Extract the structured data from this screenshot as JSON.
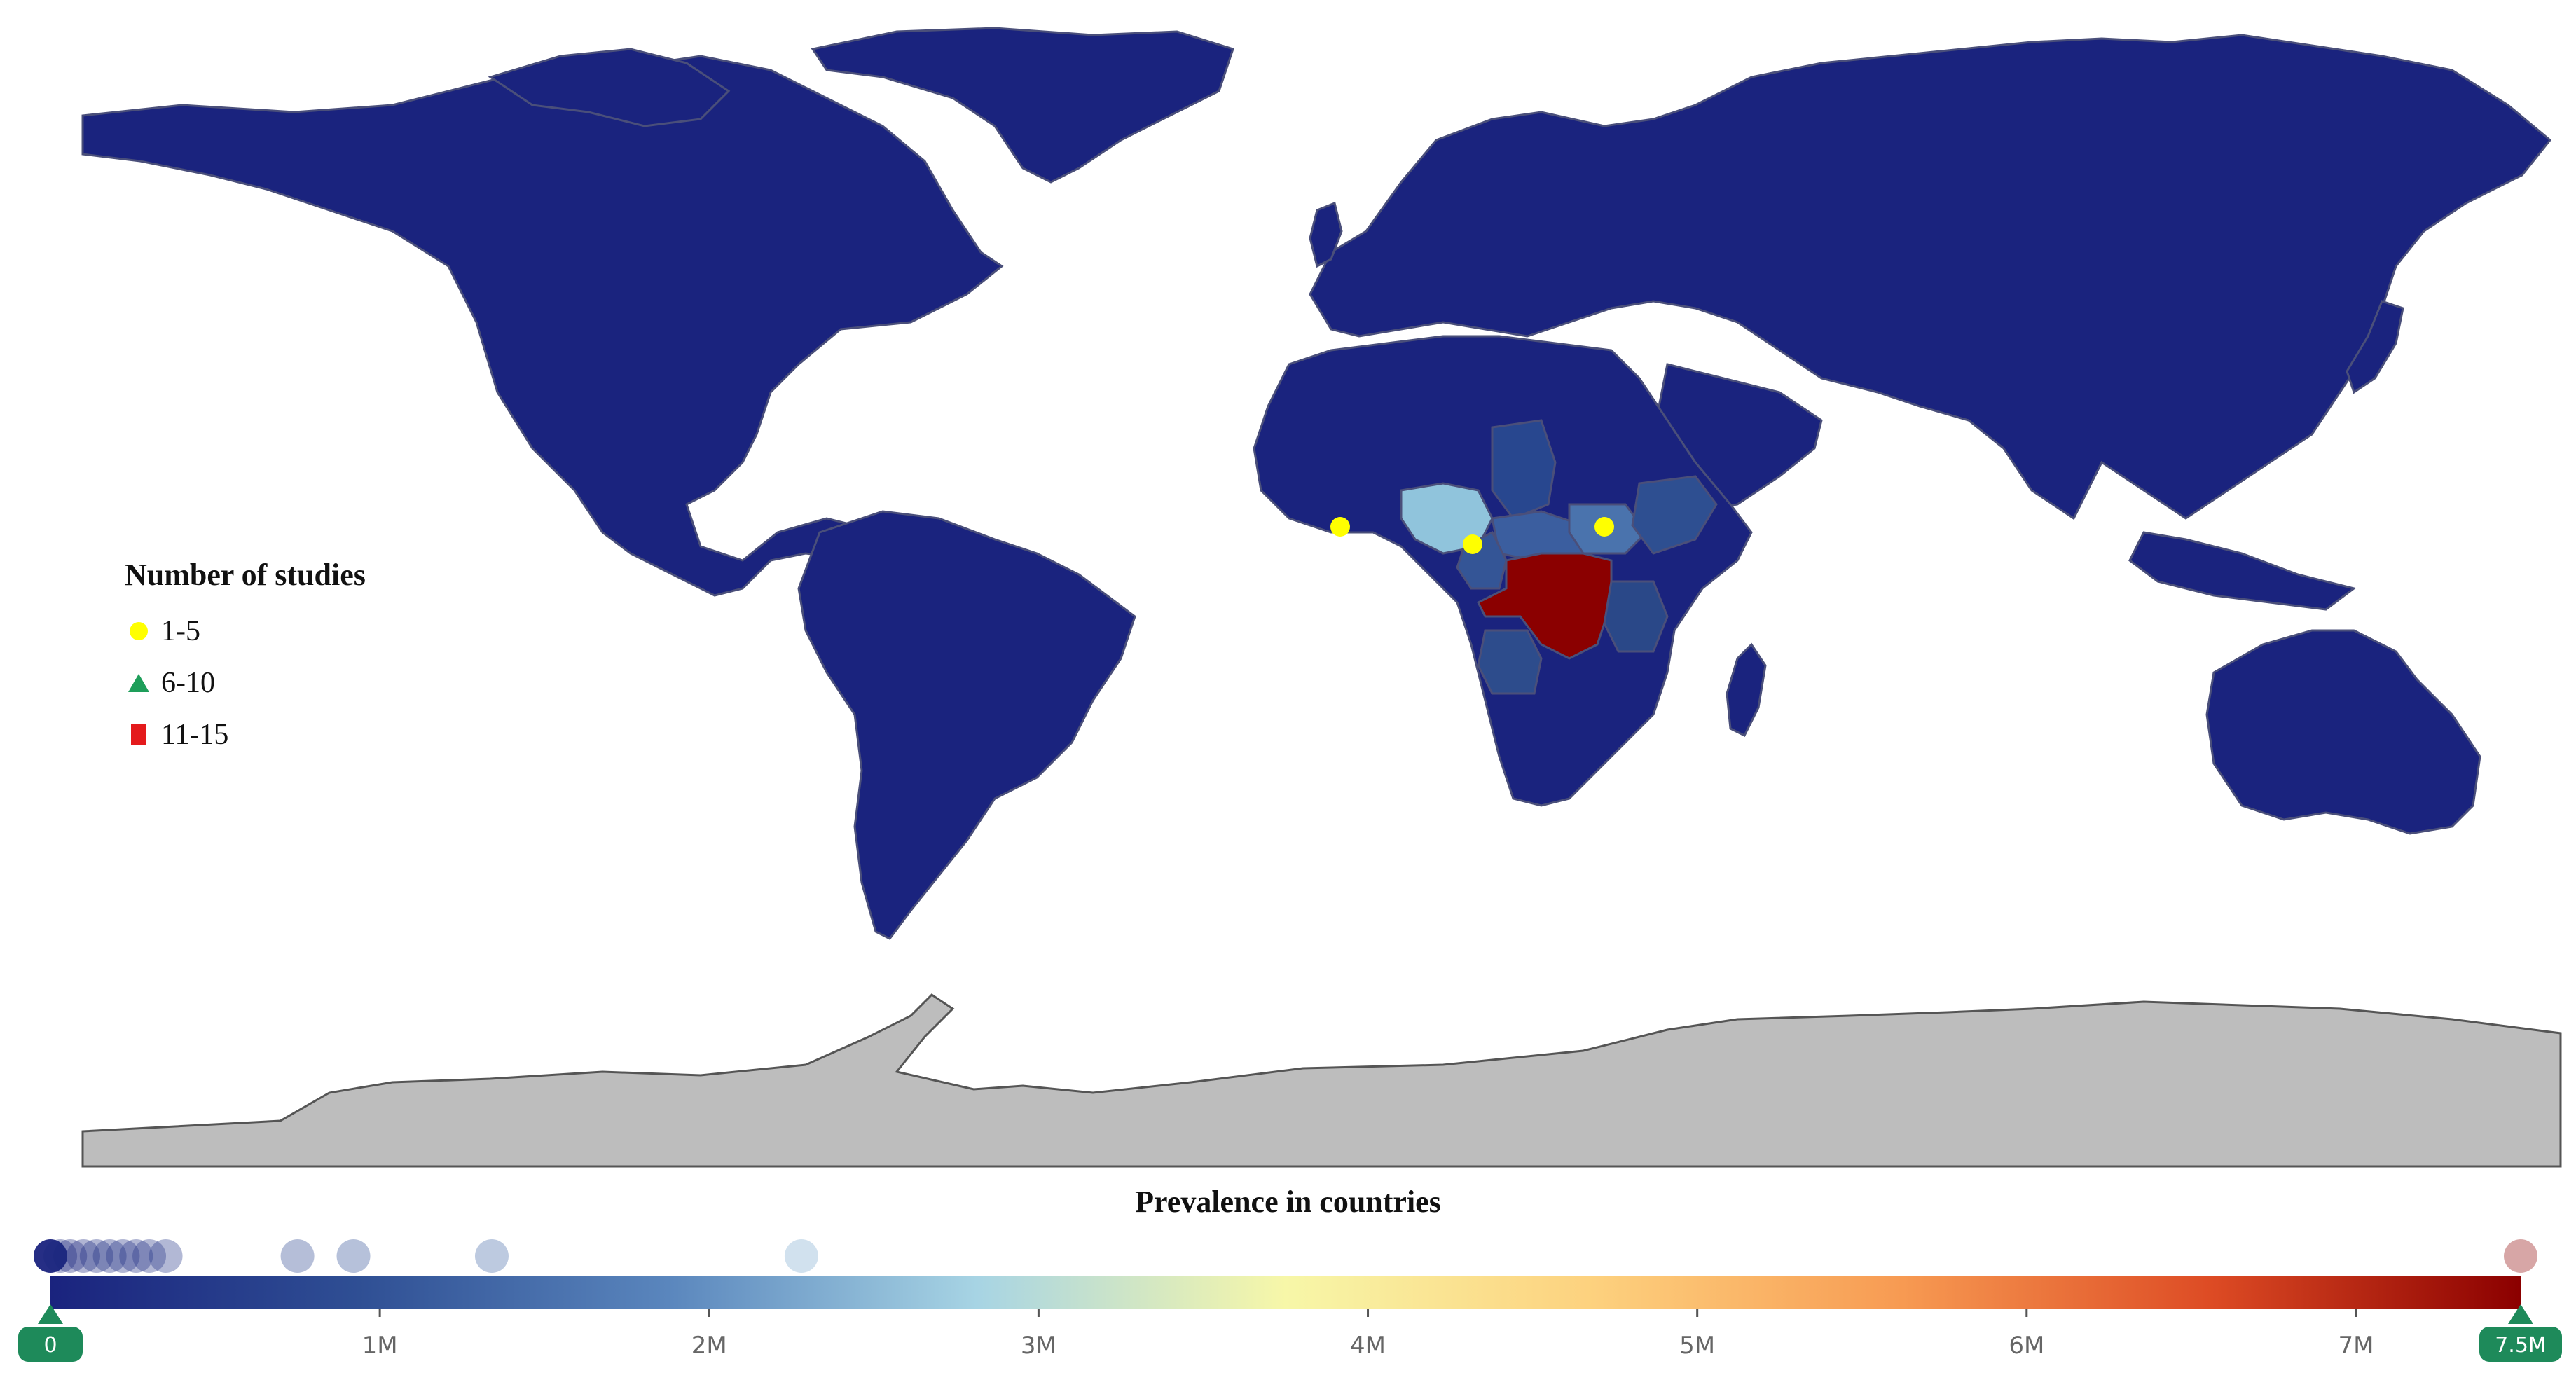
{
  "map": {
    "ocean_color": "#ffffff",
    "default_country_color": "#1a237e",
    "no_data_color": "#bdbdbd",
    "border_color": "#4a4f7a",
    "highlighted_countries": [
      {
        "name": "Nigeria",
        "color": "#90c4dc"
      },
      {
        "name": "Democratic Republic of the Congo",
        "color": "#8b0000"
      },
      {
        "name": "Chad",
        "color": "#28478f"
      },
      {
        "name": "Central African Republic",
        "color": "#3b5e9f"
      },
      {
        "name": "South Sudan",
        "color": "#4a73ad"
      },
      {
        "name": "Ethiopia",
        "color": "#2e4f91"
      },
      {
        "name": "Angola",
        "color": "#2d4c8c"
      },
      {
        "name": "Tanzania",
        "color": "#2a4888"
      },
      {
        "name": "Cameroon",
        "color": "#345596"
      }
    ],
    "study_markers": [
      {
        "country": "Ghana",
        "category": "1-5"
      },
      {
        "country": "Cameroon",
        "category": "1-5"
      },
      {
        "country": "South Sudan",
        "category": "1-5"
      }
    ]
  },
  "legend": {
    "title": "Number of studies",
    "items": [
      {
        "label": "1-5",
        "shape": "circle",
        "color": "#ffff00"
      },
      {
        "label": "6-10",
        "shape": "triangle",
        "color": "#1e9e5a"
      },
      {
        "label": "11-15",
        "shape": "square",
        "color": "#e41a1c"
      }
    ]
  },
  "colorbar": {
    "title": "Prevalence in countries",
    "min": 0,
    "max": 7500000,
    "ticks": [
      {
        "value": 1000000,
        "label": "1M"
      },
      {
        "value": 2000000,
        "label": "2M"
      },
      {
        "value": 3000000,
        "label": "3M"
      },
      {
        "value": 4000000,
        "label": "4M"
      },
      {
        "value": 5000000,
        "label": "5M"
      },
      {
        "value": 6000000,
        "label": "6M"
      },
      {
        "value": 7000000,
        "label": "7M"
      }
    ],
    "min_handle_label": "0",
    "max_handle_label": "7.5M",
    "handle_color": "#1e8a5a",
    "gradient_stops": [
      "#1a237e",
      "#2f4f94",
      "#5a86bd",
      "#a7d4e4",
      "#f7f7a8",
      "#fdd17e",
      "#f79a52",
      "#dd4b24",
      "#8b0000"
    ],
    "country_values": [
      0,
      30000,
      60000,
      100000,
      140000,
      180000,
      220000,
      260000,
      300000,
      350000,
      750000,
      920000,
      1340000,
      2280000,
      7500000
    ]
  }
}
